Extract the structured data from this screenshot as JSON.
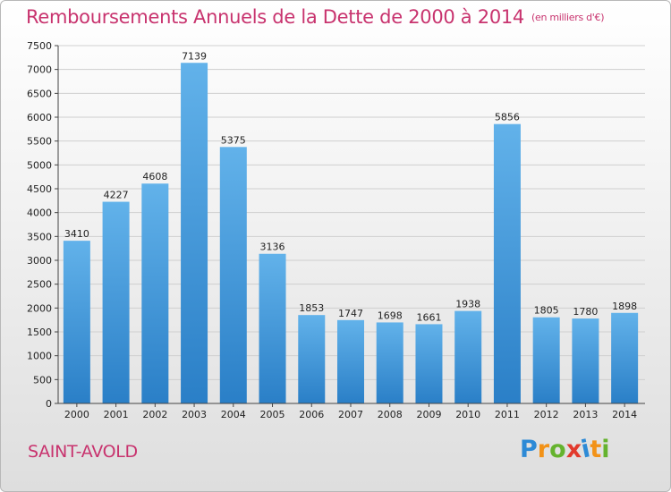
{
  "header": {
    "title": "Remboursements Annuels de la Dette de 2000 à 2014",
    "subtitle": "(en milliers d'€)"
  },
  "footer": {
    "city": "SAINT-AVOLD",
    "logo_text": "Proxiti"
  },
  "colors": {
    "title": "#c8336e",
    "bar_light": "#62b2ea",
    "bar_dark": "#2a7fc7",
    "grid": "#cfcfcf",
    "axis": "#444444",
    "logo_letters": [
      "#2d8ad6",
      "#f29217",
      "#65b32e",
      "#e23a2d",
      "#2d8ad6",
      "#f29217",
      "#65b32e"
    ]
  },
  "chart_data": {
    "type": "bar",
    "title": "Remboursements Annuels de la Dette de 2000 à 2014",
    "xlabel": "",
    "ylabel": "",
    "categories": [
      "2000",
      "2001",
      "2002",
      "2003",
      "2004",
      "2005",
      "2006",
      "2007",
      "2008",
      "2009",
      "2010",
      "2011",
      "2012",
      "2013",
      "2014"
    ],
    "values": [
      3410,
      4227,
      4608,
      7139,
      5375,
      3136,
      1853,
      1747,
      1698,
      1661,
      1938,
      5856,
      1805,
      1780,
      1898
    ],
    "value_labels": [
      "3410",
      "4227",
      "4608",
      "7139",
      "5375",
      "3136",
      "1853",
      "1747",
      "1698",
      "1661",
      "1938",
      "5856",
      "1805",
      "1780",
      "1898"
    ],
    "ylim": [
      0,
      7500
    ],
    "yticks": [
      0,
      500,
      1000,
      1500,
      2000,
      2500,
      3000,
      3500,
      4000,
      4500,
      5000,
      5500,
      6000,
      6500,
      7000,
      7500
    ],
    "ytick_labels": [
      "0",
      "500",
      "1000",
      "1500",
      "2000",
      "2500",
      "3000",
      "3500",
      "4000",
      "4500",
      "5000",
      "5500",
      "6000",
      "6500",
      "7000",
      "7500"
    ],
    "grid": true,
    "legend": "none"
  }
}
